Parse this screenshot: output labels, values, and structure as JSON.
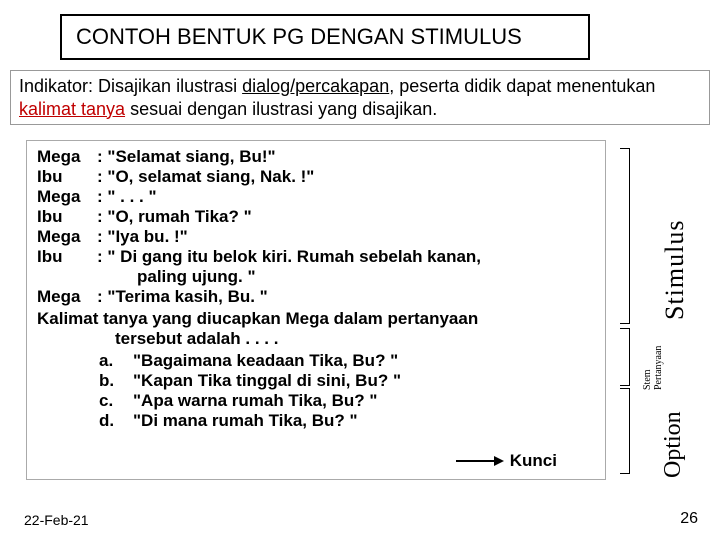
{
  "title": "CONTOH  BENTUK PG DENGAN STIMULUS",
  "indikator": {
    "pre": "Indikator: Disajikan ilustrasi ",
    "u1": "dialog/percakapan",
    "mid": ", peserta didik dapat menentukan ",
    "u2": "kalimat tanya",
    "post": "  sesuai dengan ilustrasi yang disajikan."
  },
  "dialog": [
    {
      "sp": "Mega",
      "ln": ": \"Selamat siang, Bu!\""
    },
    {
      "sp": "Ibu",
      "ln": ": \"O, selamat siang, Nak. !\""
    },
    {
      "sp": "Mega",
      "ln": ": \" . . . \""
    },
    {
      "sp": "Ibu",
      "ln": ": \"O, rumah Tika? \""
    },
    {
      "sp": "Mega",
      "ln": ": \"Iya bu. !\""
    },
    {
      "sp": "Ibu",
      "ln": ": \" Di gang itu belok kiri. Rumah sebelah kanan,"
    }
  ],
  "dialog_cont": "paling ujung. \"",
  "dialog_last": {
    "sp": "Mega",
    "ln": ": \"Terima kasih, Bu. \""
  },
  "question_l1": "Kalimat tanya yang diucapkan Mega dalam pertanyaan",
  "question_l2": "tersebut adalah . . . .",
  "options": [
    {
      "l": "a.",
      "t": "\"Bagaimana keadaan Tika, Bu? \""
    },
    {
      "l": "b.",
      "t": "\"Kapan Tika tinggal di sini, Bu? \""
    },
    {
      "l": "c.",
      "t": "\"Apa warna rumah Tika, Bu? \""
    },
    {
      "l": "d.",
      "t": "\"Di mana rumah Tika, Bu? \""
    }
  ],
  "kunci": "Kunci",
  "labels": {
    "stimulus": "Stimulus",
    "stem": "Stem Pertanyaan",
    "option": "Option"
  },
  "footer": {
    "date": "22-Feb-21",
    "page": "26"
  }
}
